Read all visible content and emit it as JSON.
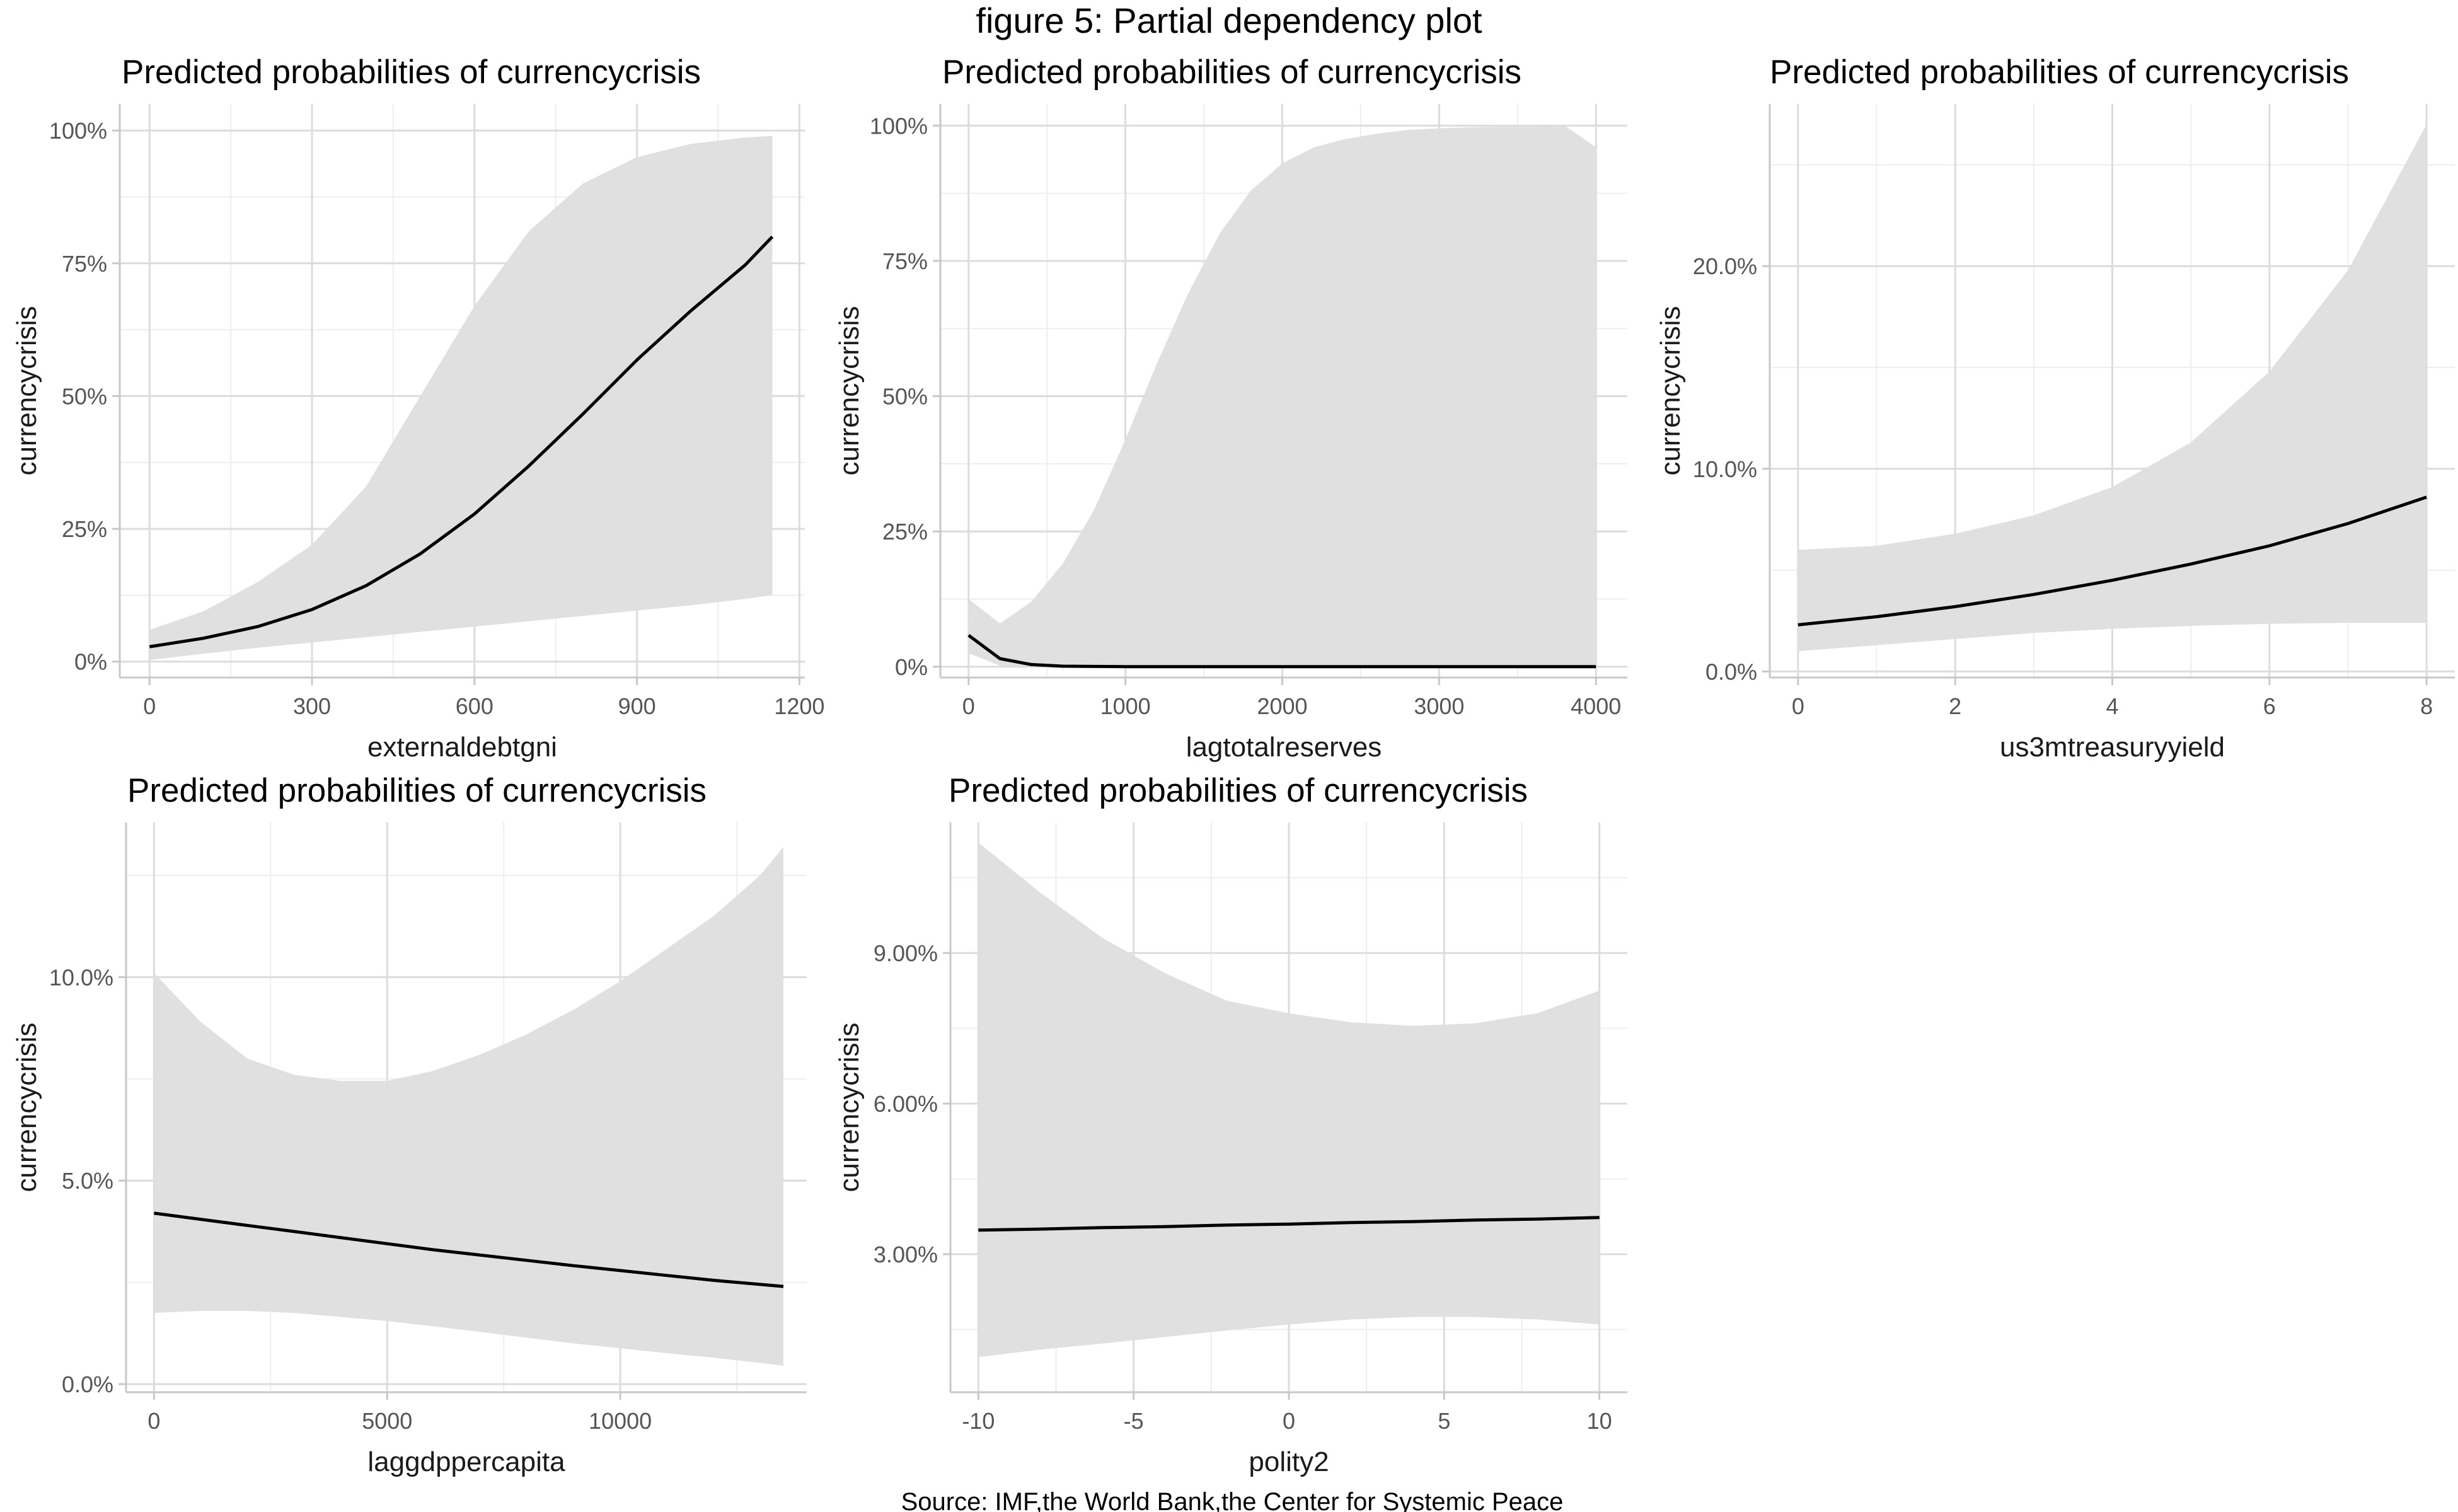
{
  "figure": {
    "title": "figure 5: Partial dependency plot",
    "caption": "Source: IMF,the World Bank,the Center for Systemic Peace"
  },
  "colors": {
    "ribbon": "#dedede",
    "line": "#000000",
    "grid_major": "#dcdcdc",
    "grid_minor": "#eeeeee",
    "axis": "#c8c8c8"
  },
  "chart_data": [
    {
      "type": "line",
      "title": "Predicted probabilities of currencycrisis",
      "xlabel": "externaldebtgni",
      "ylabel": "currencycrisis",
      "xlim": [
        -55,
        1210
      ],
      "ylim": [
        -3,
        105
      ],
      "xticks": [
        0,
        300,
        600,
        900,
        1200
      ],
      "xtick_labels": [
        "0",
        "300",
        "600",
        "900",
        "1200"
      ],
      "yticks": [
        0,
        25,
        50,
        75,
        100
      ],
      "ytick_labels": [
        "0%",
        "25%",
        "50%",
        "75%",
        "100%"
      ],
      "grid": true,
      "series": [
        {
          "x": [
            0,
            100,
            200,
            300,
            400,
            500,
            600,
            700,
            800,
            900,
            1000,
            1100,
            1150
          ],
          "y": [
            2.8,
            4.4,
            6.6,
            9.8,
            14.3,
            20.3,
            27.8,
            36.8,
            46.6,
            56.8,
            66.1,
            74.7,
            80.0
          ],
          "lower": [
            0.3,
            1.5,
            2.6,
            3.6,
            4.6,
            5.6,
            6.6,
            7.6,
            8.6,
            9.6,
            10.6,
            11.8,
            12.5
          ],
          "upper": [
            6.0,
            9.5,
            15.0,
            22.0,
            33.0,
            50.0,
            67.0,
            81.0,
            90.0,
            95.0,
            97.5,
            98.7,
            99.0
          ]
        }
      ]
    },
    {
      "type": "line",
      "title": "Predicted probabilities of currencycrisis",
      "xlabel": "lagtotalreserves",
      "ylabel": "currencycrisis",
      "xlim": [
        -180,
        4200
      ],
      "ylim": [
        -2,
        104
      ],
      "xticks": [
        0,
        1000,
        2000,
        3000,
        4000
      ],
      "xtick_labels": [
        "0",
        "1000",
        "2000",
        "3000",
        "4000"
      ],
      "yticks": [
        0,
        25,
        50,
        75,
        100
      ],
      "ytick_labels": [
        "0%",
        "25%",
        "50%",
        "75%",
        "100%"
      ],
      "grid": true,
      "series": [
        {
          "x": [
            0,
            200,
            400,
            600,
            800,
            1000,
            1200,
            1400,
            1600,
            1800,
            2000,
            2200,
            2400,
            2600,
            2800,
            3000,
            3200,
            3400,
            3600,
            3800,
            4000
          ],
          "y": [
            5.8,
            1.5,
            0.4,
            0.1,
            0.05,
            0.02,
            0.01,
            0,
            0,
            0,
            0,
            0,
            0,
            0,
            0,
            0,
            0,
            0,
            0,
            0,
            0
          ],
          "lower": [
            2.5,
            0.2,
            0,
            0,
            0,
            0,
            0,
            0,
            0,
            0,
            0,
            0,
            0,
            0,
            0,
            0,
            0,
            0,
            0,
            0,
            0
          ],
          "upper": [
            12.5,
            8.0,
            12.0,
            19.0,
            29.0,
            42.0,
            56.0,
            69.0,
            80.0,
            88.0,
            93.0,
            96.0,
            97.5,
            98.5,
            99.2,
            99.5,
            99.7,
            99.8,
            99.8,
            100.0,
            96.0
          ]
        }
      ]
    },
    {
      "type": "line",
      "title": "Predicted probabilities of currencycrisis",
      "xlabel": "us3mtreasuryyield",
      "ylabel": "currencycrisis",
      "xlim": [
        -0.36,
        8.36
      ],
      "ylim": [
        -0.3,
        28.0
      ],
      "xticks": [
        0,
        2,
        4,
        6,
        8
      ],
      "xtick_labels": [
        "0",
        "2",
        "4",
        "6",
        "8"
      ],
      "yticks": [
        0,
        10,
        20
      ],
      "ytick_labels": [
        "0.0%",
        "10.0%",
        "20.0%"
      ],
      "grid": true,
      "series": [
        {
          "x": [
            0,
            1,
            2,
            3,
            4,
            5,
            6,
            7,
            8
          ],
          "y": [
            2.3,
            2.7,
            3.2,
            3.8,
            4.5,
            5.3,
            6.2,
            7.3,
            8.6
          ],
          "lower": [
            1.0,
            1.3,
            1.6,
            1.9,
            2.1,
            2.25,
            2.35,
            2.4,
            2.4
          ],
          "upper": [
            6.0,
            6.2,
            6.8,
            7.7,
            9.1,
            11.3,
            14.8,
            19.8,
            27.0
          ]
        }
      ]
    },
    {
      "type": "line",
      "title": "Predicted probabilities of currencycrisis",
      "xlabel": "laggdppercapita",
      "ylabel": "currencycrisis",
      "xlim": [
        -600,
        14000
      ],
      "ylim": [
        -0.2,
        13.8
      ],
      "xticks": [
        0,
        5000,
        10000
      ],
      "xtick_labels": [
        "0",
        "5000",
        "10000"
      ],
      "yticks": [
        0,
        5,
        10
      ],
      "ytick_labels": [
        "0.0%",
        "5.0%",
        "10.0%"
      ],
      "grid": true,
      "series": [
        {
          "x": [
            0,
            1000,
            2000,
            3000,
            4000,
            5000,
            6000,
            7000,
            8000,
            9000,
            10000,
            11000,
            12000,
            13000,
            13500
          ],
          "y": [
            4.2,
            4.05,
            3.9,
            3.75,
            3.6,
            3.45,
            3.3,
            3.17,
            3.04,
            2.91,
            2.79,
            2.67,
            2.55,
            2.45,
            2.4
          ],
          "lower": [
            1.75,
            1.8,
            1.8,
            1.75,
            1.65,
            1.55,
            1.42,
            1.28,
            1.14,
            1.0,
            0.88,
            0.76,
            0.65,
            0.52,
            0.45
          ],
          "upper": [
            10.1,
            8.9,
            8.0,
            7.6,
            7.45,
            7.45,
            7.7,
            8.1,
            8.6,
            9.2,
            9.9,
            10.7,
            11.5,
            12.5,
            13.2
          ]
        }
      ]
    },
    {
      "type": "line",
      "title": "Predicted probabilities of currencycrisis",
      "xlabel": "polity2",
      "ylabel": "currencycrisis",
      "xlim": [
        -10.9,
        10.9
      ],
      "ylim": [
        0.25,
        11.6
      ],
      "xticks": [
        -10,
        -5,
        0,
        5,
        10
      ],
      "xtick_labels": [
        "-10",
        "-5",
        "0",
        "5",
        "10"
      ],
      "yticks": [
        3,
        6,
        9
      ],
      "ytick_labels": [
        "3.00%",
        "6.00%",
        "9.00%"
      ],
      "grid": true,
      "series": [
        {
          "x": [
            -10,
            -8,
            -6,
            -4,
            -2,
            0,
            2,
            4,
            6,
            8,
            10
          ],
          "y": [
            3.48,
            3.5,
            3.53,
            3.55,
            3.58,
            3.6,
            3.63,
            3.65,
            3.68,
            3.7,
            3.73
          ],
          "lower": [
            0.95,
            1.1,
            1.22,
            1.35,
            1.48,
            1.6,
            1.7,
            1.75,
            1.75,
            1.7,
            1.6
          ],
          "upper": [
            11.2,
            10.2,
            9.3,
            8.6,
            8.05,
            7.8,
            7.62,
            7.55,
            7.6,
            7.8,
            8.25
          ]
        }
      ]
    }
  ]
}
